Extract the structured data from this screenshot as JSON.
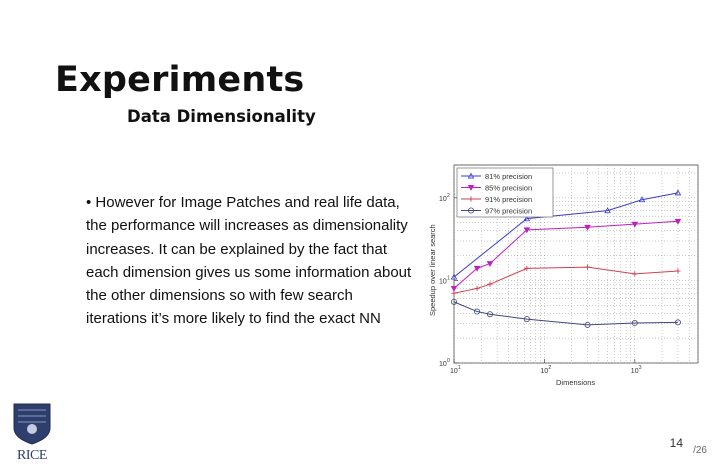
{
  "slide": {
    "title": "Experiments",
    "subtitle": "Data Dimensionality",
    "bullet": "• However for Image Patches and real life data, the performance will increases as dimensionality increases. It can be explained by the fact that each dimension gives us some information about the other dimensions so with few search iterations it’s more likely to find the exact NN",
    "page_number": "14",
    "page_total": "/26",
    "logo_text": "RICE"
  },
  "colors": {
    "series_81": "#3a3ad0",
    "series_85": "#c020c0",
    "series_91": "#d04050",
    "series_97": "#404880"
  },
  "chart_data": {
    "type": "line",
    "xlabel": "Dimensions",
    "ylabel": "Speedup over linear search",
    "x_scale": "log",
    "y_scale": "log",
    "xlim": [
      10,
      5000
    ],
    "ylim": [
      1,
      250
    ],
    "x_ticks": [
      {
        "value": 10,
        "base": "10",
        "exp": "1"
      },
      {
        "value": 100,
        "base": "10",
        "exp": "2"
      },
      {
        "value": 1000,
        "base": "10",
        "exp": "3"
      }
    ],
    "y_ticks": [
      {
        "value": 1,
        "base": "10",
        "exp": "0"
      },
      {
        "value": 10,
        "base": "10",
        "exp": "1"
      },
      {
        "value": 100,
        "base": "10",
        "exp": "2"
      }
    ],
    "grid": true,
    "legend_position": "top-left",
    "series": [
      {
        "name": "81% precision",
        "marker": "triangle-up",
        "color": "#3a3ad0",
        "x": [
          10,
          64,
          500,
          1200,
          3000
        ],
        "y": [
          11,
          56,
          70,
          95,
          115
        ]
      },
      {
        "name": "85% precision",
        "marker": "triangle-down",
        "color": "#c020c0",
        "x": [
          10,
          18,
          25,
          64,
          300,
          1000,
          3000
        ],
        "y": [
          8,
          14,
          16,
          41,
          44,
          48,
          52
        ]
      },
      {
        "name": "91% precision",
        "marker": "plus",
        "color": "#d04050",
        "x": [
          10,
          18,
          25,
          64,
          300,
          1000,
          3000
        ],
        "y": [
          7,
          8,
          9,
          14,
          14.5,
          12,
          13
        ]
      },
      {
        "name": "97% precision",
        "marker": "circle",
        "color": "#404880",
        "x": [
          10,
          18,
          25,
          64,
          300,
          1000,
          3000
        ],
        "y": [
          5.5,
          4.2,
          3.9,
          3.4,
          2.9,
          3.05,
          3.1
        ]
      }
    ]
  }
}
